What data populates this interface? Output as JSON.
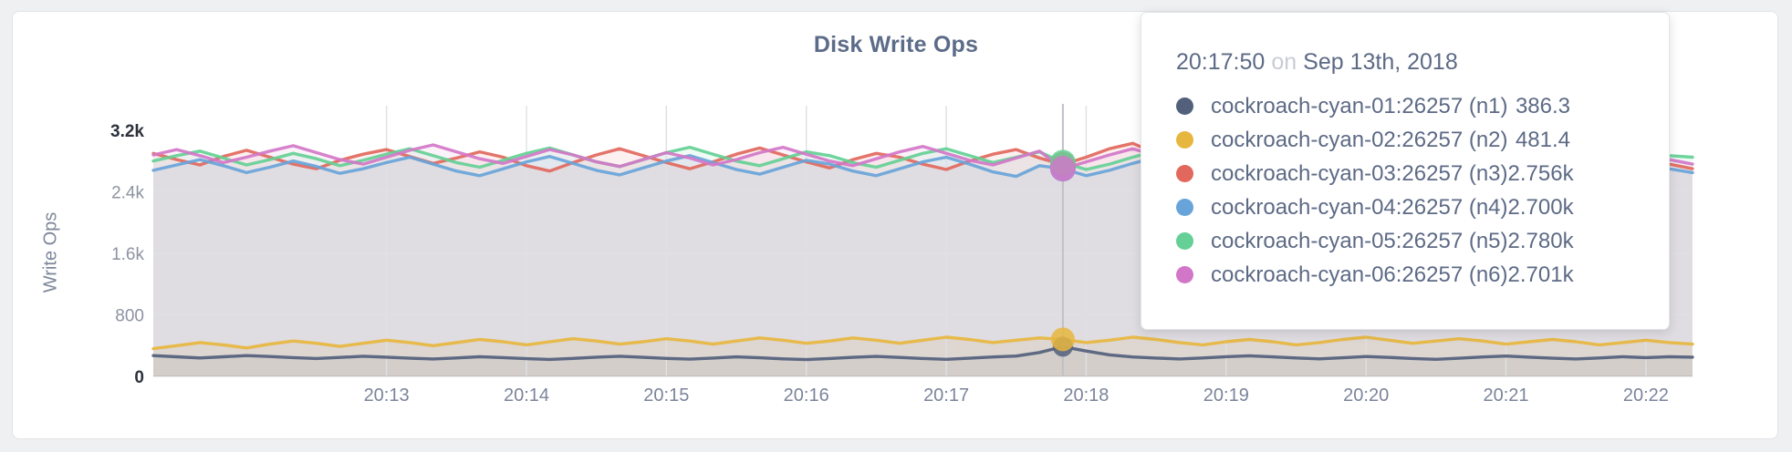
{
  "chart": {
    "title": "Disk Write Ops",
    "ylabel": "Write Ops"
  },
  "tooltip": {
    "time": "20:17:50",
    "connector": "on",
    "date": "Sep 13th, 2018"
  },
  "colors": {
    "slate_text": "#5d6a85",
    "muted_text": "#c9ccd4",
    "axis_minor": "#8d93a2",
    "axis_emphasis": "#2c313c",
    "x_labels": "#7b849b",
    "gridline": "#dfe0e4",
    "hover_line": "#bfc1c7",
    "card_background": "#ffffff",
    "page_background": "#eff0f2"
  },
  "chart_data": {
    "type": "area",
    "title": "Disk Write Ops",
    "xlabel": "",
    "ylabel": "Write Ops",
    "ylim": [
      0,
      3200
    ],
    "grid": true,
    "legend_position": "tooltip",
    "x_step_seconds": 10,
    "x_total_seconds": 660,
    "x_ticks": [
      {
        "t": 100,
        "label": "20:13"
      },
      {
        "t": 160,
        "label": "20:14"
      },
      {
        "t": 220,
        "label": "20:15"
      },
      {
        "t": 280,
        "label": "20:16"
      },
      {
        "t": 340,
        "label": "20:17"
      },
      {
        "t": 400,
        "label": "20:18"
      },
      {
        "t": 460,
        "label": "20:19"
      },
      {
        "t": 520,
        "label": "20:20"
      },
      {
        "t": 580,
        "label": "20:21"
      },
      {
        "t": 640,
        "label": "20:22"
      }
    ],
    "y_ticks": [
      {
        "value": 0,
        "label": "0",
        "emphasis": true,
        "grid": false
      },
      {
        "value": 800,
        "label": "800",
        "emphasis": false,
        "grid": true
      },
      {
        "value": 1600,
        "label": "1.6k",
        "emphasis": false,
        "grid": true
      },
      {
        "value": 2400,
        "label": "2.4k",
        "emphasis": false,
        "grid": true
      },
      {
        "value": 3200,
        "label": "3.2k",
        "emphasis": true,
        "grid": false
      }
    ],
    "hover_index": 39,
    "hover_seconds": 390,
    "hover_time": "20:17:50",
    "hover_date": "Sep 13th, 2018",
    "series": [
      {
        "id": "n1",
        "label": "cockroach-cyan-01:26257 (n1)",
        "hover_display": "386.3",
        "hover_value": 386.3,
        "color": "#52607c",
        "fill_opacity": 0.09,
        "dot_radius": 11,
        "values": [
          270,
          255,
          240,
          255,
          270,
          258,
          244,
          232,
          246,
          262,
          250,
          236,
          226,
          240,
          256,
          244,
          230,
          220,
          234,
          250,
          262,
          248,
          234,
          224,
          238,
          254,
          242,
          228,
          218,
          232,
          248,
          260,
          246,
          232,
          222,
          236,
          252,
          264,
          310,
          386.3,
          330,
          280,
          252,
          238,
          226,
          240,
          256,
          268,
          254,
          240,
          228,
          242,
          258,
          246,
          232,
          222,
          236,
          252,
          264,
          250,
          236,
          226,
          240,
          256,
          244,
          256,
          250
        ]
      },
      {
        "id": "n2",
        "label": "cockroach-cyan-02:26257 (n2)",
        "hover_display": "481.4",
        "hover_value": 481.4,
        "color": "#e7b63e",
        "fill_opacity": 0.13,
        "dot_radius": 13,
        "values": [
          360,
          400,
          440,
          410,
          370,
          420,
          460,
          430,
          390,
          430,
          470,
          440,
          400,
          440,
          480,
          450,
          410,
          450,
          490,
          460,
          420,
          450,
          490,
          460,
          420,
          460,
          500,
          470,
          430,
          460,
          500,
          470,
          430,
          470,
          510,
          480,
          440,
          470,
          500,
          481.4,
          440,
          470,
          510,
          480,
          440,
          410,
          450,
          480,
          450,
          410,
          440,
          480,
          510,
          470,
          430,
          460,
          490,
          460,
          420,
          450,
          480,
          450,
          410,
          440,
          470,
          440,
          420
        ]
      },
      {
        "id": "n3",
        "label": "cockroach-cyan-03:26257 (n3)",
        "hover_display": "2.756k",
        "hover_value": 2756,
        "color": "#e2685d",
        "fill_opacity": 0.09,
        "dot_radius": 14,
        "values": [
          2900,
          2820,
          2750,
          2860,
          2940,
          2850,
          2760,
          2700,
          2810,
          2890,
          2950,
          2860,
          2770,
          2840,
          2920,
          2850,
          2740,
          2670,
          2780,
          2880,
          2960,
          2870,
          2780,
          2700,
          2790,
          2890,
          2970,
          2880,
          2790,
          2710,
          2820,
          2900,
          2850,
          2760,
          2690,
          2800,
          2890,
          2950,
          2840,
          2756,
          2850,
          2960,
          3030,
          2900,
          2780,
          2700,
          2790,
          2880,
          2950,
          2860,
          2750,
          2680,
          2790,
          2890,
          2960,
          2870,
          2760,
          2700,
          2810,
          2900,
          2970,
          2860,
          2750,
          2690,
          2780,
          2760,
          2700
        ]
      },
      {
        "id": "n4",
        "label": "cockroach-cyan-04:26257 (n4)",
        "hover_display": "2.700k",
        "hover_value": 2700,
        "color": "#68a4d9",
        "fill_opacity": 0.09,
        "dot_radius": 14,
        "values": [
          2680,
          2750,
          2820,
          2740,
          2650,
          2720,
          2800,
          2730,
          2640,
          2700,
          2780,
          2850,
          2760,
          2670,
          2610,
          2700,
          2790,
          2860,
          2770,
          2680,
          2620,
          2710,
          2800,
          2870,
          2780,
          2690,
          2630,
          2720,
          2810,
          2760,
          2670,
          2610,
          2700,
          2790,
          2850,
          2760,
          2660,
          2600,
          2740,
          2700,
          2610,
          2680,
          2770,
          2850,
          2760,
          2670,
          2730,
          2820,
          2740,
          2650,
          2700,
          2790,
          2860,
          2770,
          2680,
          2620,
          2710,
          2800,
          2750,
          2660,
          2700,
          2780,
          2850,
          2760,
          2670,
          2700,
          2650
        ]
      },
      {
        "id": "n5",
        "label": "cockroach-cyan-05:26257 (n5)",
        "hover_display": "2.780k",
        "hover_value": 2780,
        "color": "#64d095",
        "fill_opacity": 0.09,
        "dot_radius": 14,
        "values": [
          2800,
          2870,
          2930,
          2840,
          2750,
          2820,
          2900,
          2830,
          2740,
          2810,
          2890,
          2960,
          2870,
          2780,
          2720,
          2810,
          2900,
          2970,
          2880,
          2790,
          2730,
          2820,
          2910,
          2980,
          2890,
          2800,
          2740,
          2830,
          2920,
          2870,
          2780,
          2720,
          2810,
          2900,
          2960,
          2870,
          2780,
          2850,
          2920,
          2780,
          2690,
          2760,
          2850,
          2930,
          2840,
          2750,
          2820,
          2910,
          2830,
          2740,
          2800,
          2890,
          2960,
          2870,
          2780,
          2830,
          2920,
          2990,
          2900,
          2810,
          2750,
          2840,
          2930,
          2860,
          2790,
          2870,
          2850
        ]
      },
      {
        "id": "n6",
        "label": "cockroach-cyan-06:26257 (n6)",
        "hover_display": "2.701k",
        "hover_value": 2701,
        "color": "#d277c8",
        "fill_opacity": 0.09,
        "dot_radius": 14,
        "values": [
          2880,
          2950,
          2870,
          2780,
          2850,
          2930,
          3000,
          2910,
          2820,
          2760,
          2850,
          2940,
          3010,
          2920,
          2830,
          2770,
          2860,
          2950,
          2880,
          2790,
          2730,
          2820,
          2910,
          2840,
          2750,
          2820,
          2910,
          2980,
          2890,
          2800,
          2740,
          2830,
          2920,
          2990,
          2900,
          2810,
          2750,
          2840,
          2930,
          2701,
          2790,
          2880,
          2960,
          2870,
          2780,
          2720,
          2810,
          2900,
          2970,
          2880,
          2790,
          2730,
          2820,
          2910,
          2980,
          2890,
          2800,
          2740,
          2830,
          2920,
          2850,
          2760,
          2700,
          2790,
          2880,
          2820,
          2760
        ]
      }
    ]
  }
}
